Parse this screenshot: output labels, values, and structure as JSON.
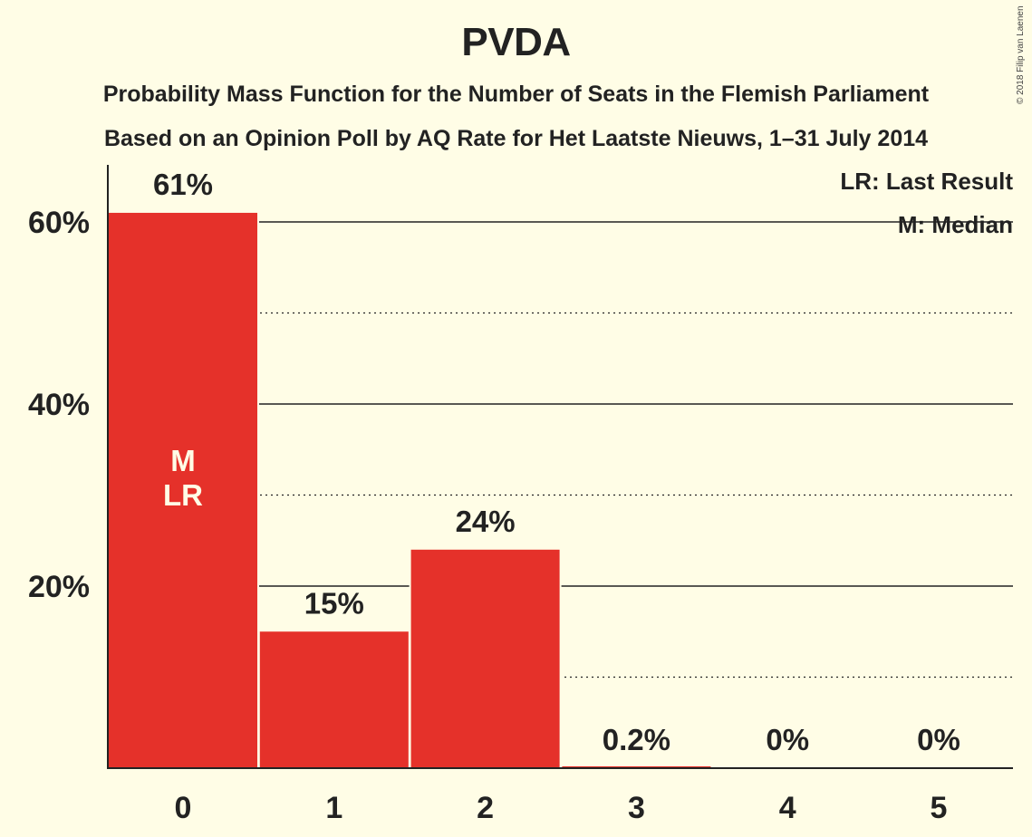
{
  "chart_data": {
    "type": "bar",
    "title": "PVDA",
    "subtitle": [
      "Probability Mass Function for the Number of Seats in the Flemish Parliament",
      "Based on an Opinion Poll by AQ Rate for Het Laatste Nieuws, 1–31 July 2014"
    ],
    "categories": [
      "0",
      "1",
      "2",
      "3",
      "4",
      "5"
    ],
    "values": [
      61,
      15,
      24,
      0.2,
      0,
      0
    ],
    "data_labels": [
      "61%",
      "15%",
      "24%",
      "0.2%",
      "0%",
      "0%"
    ],
    "bar_annotations": [
      {
        "category": "0",
        "lines": [
          "M",
          "LR"
        ]
      }
    ],
    "ylim": [
      0,
      66
    ],
    "y_major_ticks": [
      20,
      40,
      60
    ],
    "y_tick_labels": [
      "20%",
      "40%",
      "60%"
    ],
    "y_minor_gridlines": [
      10,
      30,
      50
    ],
    "grid": true,
    "legend": {
      "placement": "top-right",
      "entries": [
        "LR: Last Result",
        "M: Median"
      ]
    },
    "bar_color": "#E5312A",
    "copyright": "© 2018 Filip van Laenen"
  }
}
